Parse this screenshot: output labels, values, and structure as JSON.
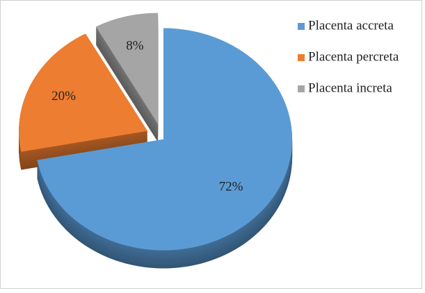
{
  "chart_data": {
    "type": "pie",
    "categories": [
      "Placenta accreta",
      "Placenta percreta",
      "Placenta increta"
    ],
    "values": [
      72,
      20,
      8
    ],
    "value_labels": [
      "72%",
      "20%",
      "8%"
    ],
    "colors": [
      "#5b9bd5",
      "#ed7d31",
      "#a5a5a5"
    ],
    "legend": "top-right"
  }
}
